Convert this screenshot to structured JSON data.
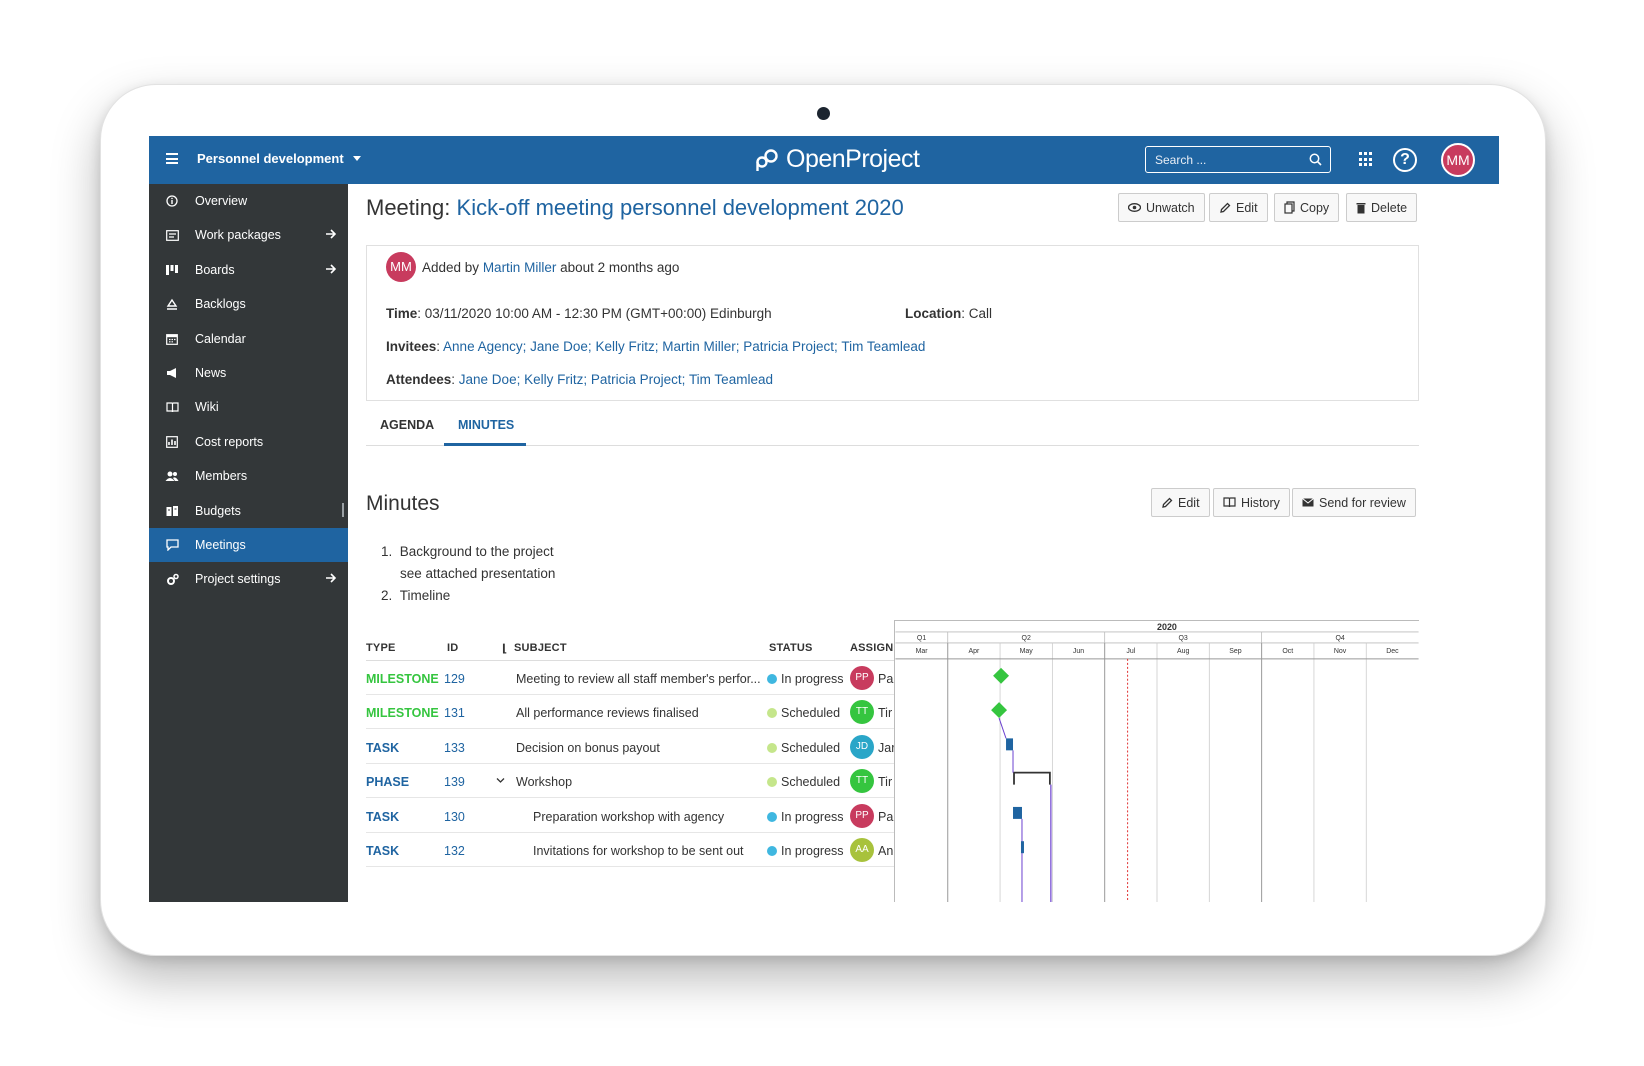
{
  "header": {
    "project_name": "Personnel development",
    "logo_text": "OpenProject",
    "search_placeholder": "Search ...",
    "user_initials": "MM"
  },
  "sidebar": {
    "items": [
      {
        "label": "Overview",
        "icon": "info-icon",
        "arrow": false,
        "active": false
      },
      {
        "label": "Work packages",
        "icon": "work-packages-icon",
        "arrow": true,
        "active": false
      },
      {
        "label": "Boards",
        "icon": "boards-icon",
        "arrow": true,
        "active": false
      },
      {
        "label": "Backlogs",
        "icon": "backlogs-icon",
        "arrow": false,
        "active": false
      },
      {
        "label": "Calendar",
        "icon": "calendar-icon",
        "arrow": false,
        "active": false
      },
      {
        "label": "News",
        "icon": "news-icon",
        "arrow": false,
        "active": false
      },
      {
        "label": "Wiki",
        "icon": "wiki-icon",
        "arrow": false,
        "active": false
      },
      {
        "label": "Cost reports",
        "icon": "cost-reports-icon",
        "arrow": false,
        "active": false
      },
      {
        "label": "Members",
        "icon": "members-icon",
        "arrow": false,
        "active": false
      },
      {
        "label": "Budgets",
        "icon": "budgets-icon",
        "arrow": false,
        "active": false
      },
      {
        "label": "Meetings",
        "icon": "meetings-icon",
        "arrow": false,
        "active": true
      },
      {
        "label": "Project settings",
        "icon": "settings-icon",
        "arrow": true,
        "active": false
      }
    ]
  },
  "meeting": {
    "title_prefix": "Meeting:",
    "title": "Kick-off meeting personnel development 2020",
    "actions": {
      "unwatch": "Unwatch",
      "edit": "Edit",
      "copy": "Copy",
      "delete": "Delete"
    },
    "author_initials": "MM",
    "added_by_label": "Added by",
    "author": "Martin Miller",
    "added_time": "about 2 months ago",
    "time_label": "Time",
    "time_value": ": 03/11/2020 10:00 AM - 12:30 PM (GMT+00:00) Edinburgh",
    "location_label": "Location",
    "location_value": ": Call",
    "invitees_label": "Invitees",
    "invitees": [
      "Anne Agency",
      "Jane Doe",
      "Kelly Fritz",
      "Martin Miller",
      "Patricia Project",
      "Tim Teamlead"
    ],
    "attendees_label": "Attendees",
    "attendees": [
      "Jane Doe",
      "Kelly Fritz",
      "Patricia Project",
      "Tim Teamlead"
    ]
  },
  "tabs": {
    "agenda": "AGENDA",
    "minutes": "MINUTES"
  },
  "minutes": {
    "heading": "Minutes",
    "actions": {
      "edit": "Edit",
      "history": "History",
      "send": "Send for review"
    },
    "items": [
      {
        "num": "1.",
        "text": "Background to the project",
        "sub": "see attached presentation"
      },
      {
        "num": "2.",
        "text": "Timeline"
      }
    ]
  },
  "wp_table": {
    "columns": {
      "type": "TYPE",
      "id": "ID",
      "subject": "SUBJECT",
      "status": "STATUS",
      "assignee": "ASSIGNEE"
    },
    "rows": [
      {
        "type": "MILESTONE",
        "id": "129",
        "subject": "Meeting to review all staff member's perfor...",
        "status": "In progress",
        "assignee_initials": "PP",
        "assignee": "Pa"
      },
      {
        "type": "MILESTONE",
        "id": "131",
        "subject": "All performance reviews finalised",
        "status": "Scheduled",
        "assignee_initials": "TT",
        "assignee": "Tir"
      },
      {
        "type": "TASK",
        "id": "133",
        "subject": "Decision on bonus payout",
        "status": "Scheduled",
        "assignee_initials": "JD",
        "assignee": "Jar"
      },
      {
        "type": "PHASE",
        "id": "139",
        "subject": "Workshop",
        "status": "Scheduled",
        "assignee_initials": "TT",
        "assignee": "Tir"
      },
      {
        "type": "TASK",
        "id": "130",
        "subject": "Preparation workshop with agency",
        "status": "In progress",
        "assignee_initials": "PP",
        "assignee": "Pa"
      },
      {
        "type": "TASK",
        "id": "132",
        "subject": "Invitations for workshop to be sent out",
        "status": "In progress",
        "assignee_initials": "AA",
        "assignee": "An"
      }
    ]
  },
  "gantt": {
    "year": "2020",
    "quarters": [
      "Q1",
      "Q2",
      "Q3",
      "Q4"
    ],
    "months": [
      "Mar",
      "Apr",
      "May",
      "Jun",
      "Jul",
      "Aug",
      "Sep",
      "Oct",
      "Nov",
      "Dec"
    ]
  },
  "colors": {
    "primary": "#1f64a1",
    "sidebar": "#333739",
    "milestone": "#35c53f",
    "in_progress": "#3fb7e0",
    "scheduled": "#c5e68b",
    "avatar_pp": "#c83b5e",
    "avatar_tt": "#35c53f",
    "avatar_jd": "#2aa6c8",
    "avatar_aa": "#a8c23c"
  }
}
